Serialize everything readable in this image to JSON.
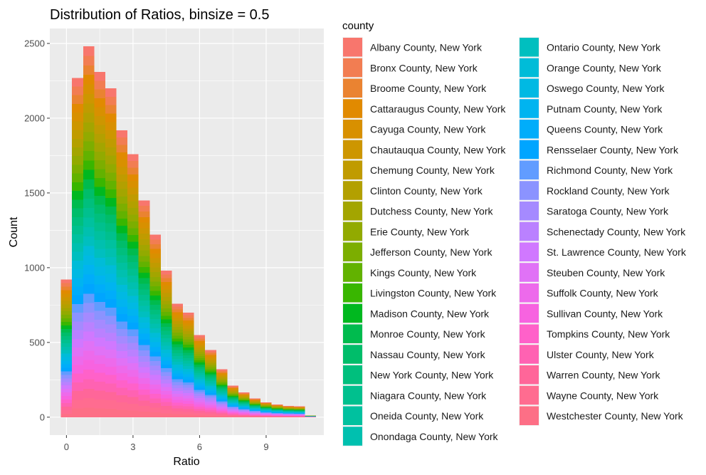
{
  "chart_data": {
    "type": "bar",
    "stacked": true,
    "title": "Distribution of Ratios, binsize = 0.5",
    "xlabel": "Ratio",
    "ylabel": "Count",
    "bin_width": 0.5,
    "xlim": [
      -0.75,
      11.6
    ],
    "ylim": [
      -120,
      2600
    ],
    "x_ticks": [
      0,
      3,
      6,
      9
    ],
    "y_ticks": [
      0,
      500,
      1000,
      1500,
      2000,
      2500
    ],
    "grid": true,
    "legend_title": "county",
    "legend_position": "right",
    "bins": [
      {
        "x": 0.0,
        "total": 920
      },
      {
        "x": 0.5,
        "total": 2270
      },
      {
        "x": 1.0,
        "total": 2480
      },
      {
        "x": 1.5,
        "total": 2310
      },
      {
        "x": 2.0,
        "total": 2200
      },
      {
        "x": 2.5,
        "total": 1920
      },
      {
        "x": 3.0,
        "total": 1760
      },
      {
        "x": 3.5,
        "total": 1450
      },
      {
        "x": 4.0,
        "total": 1220
      },
      {
        "x": 4.5,
        "total": 980
      },
      {
        "x": 5.0,
        "total": 760
      },
      {
        "x": 5.5,
        "total": 700
      },
      {
        "x": 6.0,
        "total": 550
      },
      {
        "x": 6.5,
        "total": 450
      },
      {
        "x": 7.0,
        "total": 320
      },
      {
        "x": 7.5,
        "total": 210
      },
      {
        "x": 8.0,
        "total": 165
      },
      {
        "x": 8.5,
        "total": 125
      },
      {
        "x": 9.0,
        "total": 100
      },
      {
        "x": 9.5,
        "total": 85
      },
      {
        "x": 10.0,
        "total": 75
      },
      {
        "x": 10.5,
        "total": 72
      },
      {
        "x": 11.0,
        "total": 12
      }
    ],
    "series": [
      {
        "name": "Albany County, New York",
        "color": "#F8766D"
      },
      {
        "name": "Bronx County, New York",
        "color": "#F27D52"
      },
      {
        "name": "Broome County, New York",
        "color": "#EA8331"
      },
      {
        "name": "Cattaraugus County, New York",
        "color": "#E18A00"
      },
      {
        "name": "Cayuga County, New York",
        "color": "#D89000"
      },
      {
        "name": "Chautauqua County, New York",
        "color": "#CD9600"
      },
      {
        "name": "Chemung County, New York",
        "color": "#C09B00"
      },
      {
        "name": "Clinton County, New York",
        "color": "#B3A000"
      },
      {
        "name": "Dutchess County, New York",
        "color": "#A3A500"
      },
      {
        "name": "Erie County, New York",
        "color": "#92AA00"
      },
      {
        "name": "Jefferson County, New York",
        "color": "#7CAE00"
      },
      {
        "name": "Kings County, New York",
        "color": "#62B200"
      },
      {
        "name": "Livingston County, New York",
        "color": "#39B600"
      },
      {
        "name": "Madison County, New York",
        "color": "#00B81F"
      },
      {
        "name": "Monroe County, New York",
        "color": "#00BB4E"
      },
      {
        "name": "Nassau County, New York",
        "color": "#00BD6A"
      },
      {
        "name": "New York County, New York",
        "color": "#00BF7D"
      },
      {
        "name": "Niagara County, New York",
        "color": "#00C08E"
      },
      {
        "name": "Oneida County, New York",
        "color": "#00C19F"
      },
      {
        "name": "Onondaga County, New York",
        "color": "#00C0AF"
      },
      {
        "name": "Ontario County, New York",
        "color": "#00BFBF"
      },
      {
        "name": "Orange County, New York",
        "color": "#00BCD8"
      },
      {
        "name": "Oswego County, New York",
        "color": "#00B9E3"
      },
      {
        "name": "Putnam County, New York",
        "color": "#00B4F0"
      },
      {
        "name": "Queens County, New York",
        "color": "#00ADFA"
      },
      {
        "name": "Rensselaer County, New York",
        "color": "#00A5FF"
      },
      {
        "name": "Richmond County, New York",
        "color": "#619CFF"
      },
      {
        "name": "Rockland County, New York",
        "color": "#8B93FF"
      },
      {
        "name": "Saratoga County, New York",
        "color": "#A58AFF"
      },
      {
        "name": "Schenectady County, New York",
        "color": "#BA81FF"
      },
      {
        "name": "St. Lawrence County, New York",
        "color": "#D078FF"
      },
      {
        "name": "Steuben County, New York",
        "color": "#E072F6"
      },
      {
        "name": "Suffolk County, New York",
        "color": "#ED6AEB"
      },
      {
        "name": "Sullivan County, New York",
        "color": "#F763E0"
      },
      {
        "name": "Tompkins County, New York",
        "color": "#FF61C9"
      },
      {
        "name": "Ulster County, New York",
        "color": "#FF62B2"
      },
      {
        "name": "Warren County, New York",
        "color": "#FF6699"
      },
      {
        "name": "Wayne County, New York",
        "color": "#FF6C90"
      },
      {
        "name": "Westchester County, New York",
        "color": "#FD6F86"
      }
    ]
  }
}
